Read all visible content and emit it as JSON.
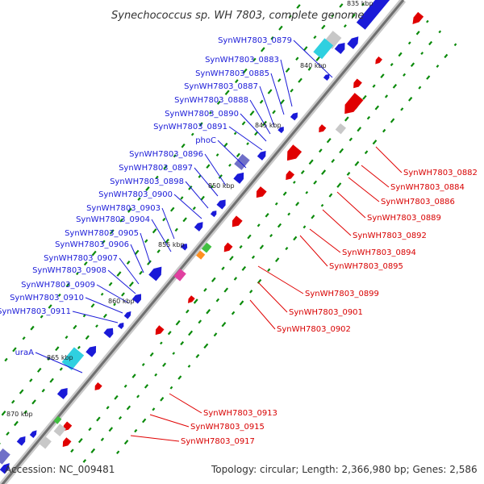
{
  "title": "Synechococcus sp. WH 7803, complete genome",
  "footer": {
    "accession": "Accession: NC_009481",
    "summary": "Topology: circular; Length: 2,366,980 bp; Genes: 2,586"
  },
  "colors": {
    "forward_gene": "#1a1ad8",
    "reverse_gene": "#e00000",
    "rna_cyan": "#2fd0e0",
    "pseudo_gray": "#c8c8c8",
    "misc_purple": "#7070c8",
    "misc_green": "#40c040",
    "misc_orange": "#ff9020",
    "misc_pink": "#e040a0",
    "gc_ticks": "#0a8a0a",
    "backbone": "#707070"
  },
  "kbp_ticks": [
    "835 kbp",
    "840 kbp",
    "845 kbp",
    "850 kbp",
    "855 kbp",
    "860 kbp",
    "865 kbp",
    "870 kbp"
  ],
  "forward_labels": [
    "SynWH7803_0879",
    "SynWH7803_0883",
    "SynWH7803_0885",
    "SynWH7803_0887",
    "SynWH7803_0888",
    "SynWH7803_0890",
    "SynWH7803_0891",
    "phoC",
    "SynWH7803_0896",
    "SynWH7803_0897",
    "SynWH7803_0898",
    "SynWH7803_0900",
    "SynWH7803_0903",
    "SynWH7803_0904",
    "SynWH7803_0905",
    "SynWH7803_0906",
    "SynWH7803_0907",
    "SynWH7803_0908",
    "SynWH7803_0909",
    "SynWH7803_0910",
    "SynWH7803_0911",
    "uraA"
  ],
  "reverse_labels": [
    "SynWH7803_0882",
    "SynWH7803_0884",
    "SynWH7803_0886",
    "SynWH7803_0889",
    "SynWH7803_0892",
    "SynWH7803_0894",
    "SynWH7803_0895",
    "SynWH7803_0899",
    "SynWH7803_0901",
    "SynWH7803_0902",
    "SynWH7803_0913",
    "SynWH7803_0915",
    "SynWH7803_0917"
  ]
}
